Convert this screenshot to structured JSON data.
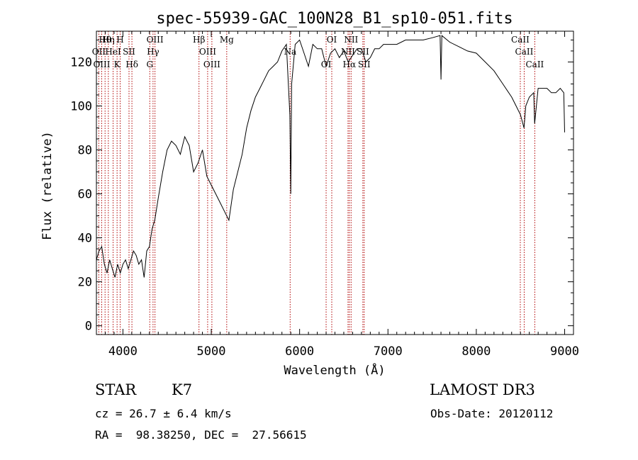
{
  "chart_data": {
    "type": "line",
    "title": "spec-55939-GAC_100N28_B1_sp10-051.fits",
    "xlabel": "Wavelength (Å)",
    "ylabel": "Flux (relative)",
    "xlim": [
      3700,
      9100
    ],
    "ylim": [
      -4,
      134
    ],
    "xticks": [
      4000,
      5000,
      6000,
      7000,
      8000,
      9000
    ],
    "yticks": [
      0,
      20,
      40,
      60,
      80,
      100,
      120
    ],
    "series": [
      {
        "name": "flux",
        "x": [
          3700,
          3730,
          3760,
          3790,
          3820,
          3850,
          3880,
          3910,
          3940,
          3970,
          4000,
          4030,
          4060,
          4090,
          4120,
          4150,
          4180,
          4210,
          4240,
          4270,
          4300,
          4330,
          4360,
          4400,
          4450,
          4500,
          4550,
          4600,
          4650,
          4700,
          4750,
          4800,
          4850,
          4900,
          4950,
          5000,
          5050,
          5100,
          5150,
          5200,
          5250,
          5300,
          5350,
          5400,
          5450,
          5500,
          5550,
          5600,
          5650,
          5700,
          5750,
          5800,
          5850,
          5890,
          5900,
          5910,
          5950,
          6000,
          6050,
          6100,
          6150,
          6200,
          6250,
          6300,
          6350,
          6400,
          6450,
          6500,
          6550,
          6600,
          6650,
          6700,
          6750,
          6800,
          6850,
          6900,
          6950,
          7000,
          7100,
          7200,
          7300,
          7400,
          7500,
          7590,
          7600,
          7610,
          7700,
          7800,
          7900,
          8000,
          8100,
          8200,
          8300,
          8400,
          8450,
          8500,
          8540,
          8560,
          8600,
          8650,
          8660,
          8700,
          8750,
          8800,
          8850,
          8900,
          8950,
          8990,
          9000
        ],
        "values": [
          30,
          34,
          36,
          28,
          24,
          30,
          26,
          22,
          28,
          24,
          28,
          30,
          26,
          30,
          34,
          32,
          28,
          30,
          22,
          34,
          36,
          44,
          48,
          58,
          70,
          80,
          84,
          82,
          78,
          86,
          82,
          70,
          74,
          80,
          68,
          64,
          60,
          56,
          52,
          48,
          62,
          70,
          78,
          90,
          98,
          104,
          108,
          112,
          116,
          118,
          120,
          125,
          128,
          96,
          60,
          110,
          128,
          130,
          124,
          118,
          128,
          126,
          126,
          118,
          124,
          126,
          122,
          125,
          120,
          123,
          126,
          126,
          120,
          122,
          126,
          126,
          128,
          128,
          128,
          130,
          130,
          130,
          131,
          132,
          112,
          132,
          129,
          127,
          125,
          124,
          120,
          116,
          110,
          104,
          100,
          96,
          90,
          100,
          104,
          106,
          92,
          108,
          108,
          108,
          106,
          106,
          108,
          106,
          88
        ]
      }
    ],
    "lines": [
      {
        "name": "Hθ",
        "wave": 3798
      },
      {
        "name": "OII",
        "wave": 3727
      },
      {
        "name": "OIII",
        "wave": 3760
      },
      {
        "name": "Hη",
        "wave": 3835
      },
      {
        "name": "HeI",
        "wave": 3889
      },
      {
        "name": "K",
        "wave": 3934
      },
      {
        "name": "H",
        "wave": 3969
      },
      {
        "name": "SII",
        "wave": 4069
      },
      {
        "name": "Hδ",
        "wave": 4102
      },
      {
        "name": "OIII",
        "wave": 4363
      },
      {
        "name": "Hγ",
        "wave": 4341
      },
      {
        "name": "G",
        "wave": 4304
      },
      {
        "name": "Hβ",
        "wave": 4861
      },
      {
        "name": "OIII",
        "wave": 4959
      },
      {
        "name": "OIII",
        "wave": 5007
      },
      {
        "name": "Mg",
        "wave": 5175
      },
      {
        "name": "Na",
        "wave": 5893
      },
      {
        "name": "OI",
        "wave": 6300
      },
      {
        "name": "OI",
        "wave": 6364
      },
      {
        "name": "NII",
        "wave": 6548
      },
      {
        "name": "Hα",
        "wave": 6563
      },
      {
        "name": "NII",
        "wave": 6583
      },
      {
        "name": "SII",
        "wave": 6716
      },
      {
        "name": "SII",
        "wave": 6731
      },
      {
        "name": "CaII",
        "wave": 8498
      },
      {
        "name": "CaII",
        "wave": 8542
      },
      {
        "name": "CaII",
        "wave": 8662
      }
    ]
  },
  "info": {
    "class": "STAR",
    "subclass": "K7",
    "cz": "cz = 26.7 ± 6.4 km/s",
    "radec": "RA =  98.38250, DEC =  27.56615",
    "survey": "LAMOST DR3",
    "obsdate": "Obs-Date: 20120112"
  },
  "colors": {
    "spectrum": "#000000",
    "line_marker": "#b00000"
  }
}
